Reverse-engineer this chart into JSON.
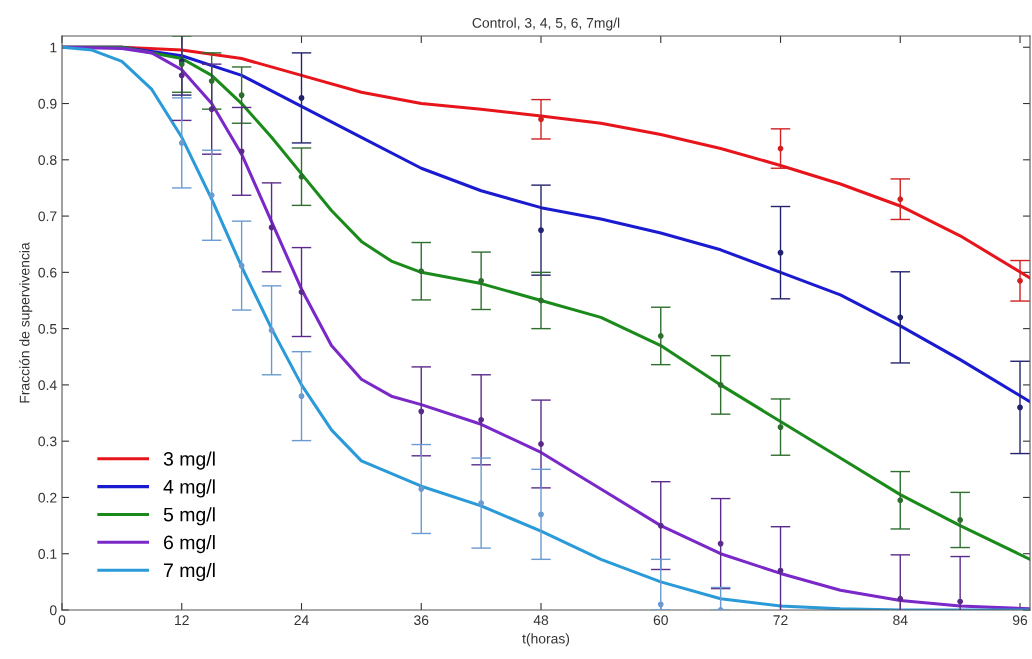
{
  "chart_data": {
    "type": "line",
    "title": "Control, 3, 4, 5, 6, 7mg/l",
    "xlabel": "t(horas)",
    "ylabel": "Fracción de supervivencia",
    "xlim": [
      0,
      97
    ],
    "ylim": [
      0,
      1.02
    ],
    "xticks": [
      0,
      12,
      24,
      36,
      48,
      60,
      72,
      84,
      96
    ],
    "yticks": [
      0,
      0.1,
      0.2,
      0.3,
      0.4,
      0.5,
      0.6,
      0.7,
      0.8,
      0.9,
      1
    ],
    "grid": false,
    "legend": "bottom left",
    "line_style": "solid",
    "series": [
      {
        "name": "3 mg/l",
        "color": "#e8141c",
        "x": [
          0,
          6,
          12,
          18,
          24,
          30,
          36,
          42,
          48,
          54,
          60,
          66,
          72,
          78,
          84,
          90,
          97
        ],
        "values": [
          1,
          1,
          0.995,
          0.98,
          0.95,
          0.92,
          0.9,
          0.89,
          0.878,
          0.865,
          0.845,
          0.82,
          0.79,
          0.757,
          0.718,
          0.665,
          0.59
        ]
      },
      {
        "name": "4 mg/l",
        "color": "#1a1ad0",
        "x": [
          0,
          6,
          12,
          18,
          24,
          30,
          36,
          42,
          48,
          54,
          60,
          66,
          72,
          78,
          84,
          90,
          97
        ],
        "values": [
          1,
          1,
          0.985,
          0.95,
          0.895,
          0.84,
          0.785,
          0.745,
          0.715,
          0.695,
          0.67,
          0.64,
          0.6,
          0.56,
          0.505,
          0.445,
          0.37
        ]
      },
      {
        "name": "5 mg/l",
        "color": "#1a8a1a",
        "x": [
          0,
          6,
          12,
          15,
          18,
          21,
          24,
          27,
          30,
          33,
          36,
          42,
          48,
          54,
          60,
          66,
          72,
          78,
          84,
          90,
          97
        ],
        "values": [
          1,
          1,
          0.98,
          0.95,
          0.9,
          0.84,
          0.775,
          0.71,
          0.655,
          0.62,
          0.6,
          0.58,
          0.55,
          0.52,
          0.47,
          0.4,
          0.335,
          0.27,
          0.205,
          0.15,
          0.09
        ]
      },
      {
        "name": "6 mg/l",
        "color": "#7a28c8",
        "x": [
          0,
          6,
          9,
          12,
          15,
          18,
          21,
          24,
          27,
          30,
          33,
          36,
          42,
          48,
          54,
          60,
          66,
          72,
          78,
          84,
          90,
          97
        ],
        "values": [
          1,
          0.998,
          0.99,
          0.96,
          0.9,
          0.81,
          0.69,
          0.57,
          0.47,
          0.41,
          0.38,
          0.365,
          0.33,
          0.28,
          0.215,
          0.15,
          0.1,
          0.065,
          0.035,
          0.017,
          0.007,
          0.002
        ]
      },
      {
        "name": "7 mg/l",
        "color": "#2a9ad8",
        "x": [
          0,
          3,
          6,
          9,
          12,
          15,
          18,
          21,
          24,
          27,
          30,
          36,
          42,
          48,
          54,
          60,
          66,
          72,
          78,
          84,
          97
        ],
        "values": [
          1,
          0.995,
          0.975,
          0.925,
          0.84,
          0.73,
          0.61,
          0.5,
          0.4,
          0.32,
          0.265,
          0.22,
          0.185,
          0.14,
          0.09,
          0.05,
          0.02,
          0.007,
          0.002,
          0,
          0
        ]
      },
      {
        "type": "scatter",
        "marker": "circle",
        "color": "#d02020",
        "x": [
          48,
          72,
          84,
          96
        ],
        "values": [
          0.872,
          0.82,
          0.73,
          0.585
        ],
        "errors": [
          0.035,
          0.035,
          0.036,
          0.036
        ]
      },
      {
        "type": "scatter",
        "marker": "circle",
        "color": "#22226e",
        "x": [
          12,
          24,
          48,
          72,
          84,
          96
        ],
        "values": [
          0.975,
          0.91,
          0.675,
          0.635,
          0.52,
          0.36
        ],
        "errors": [
          0.06,
          0.08,
          0.08,
          0.082,
          0.081,
          0.082
        ]
      },
      {
        "type": "scatter",
        "marker": "circle",
        "color": "#2e6e2e",
        "x": [
          12,
          15,
          18,
          24,
          36,
          42,
          48,
          60,
          66,
          72,
          84,
          90
        ],
        "values": [
          0.97,
          0.94,
          0.915,
          0.77,
          0.602,
          0.585,
          0.55,
          0.487,
          0.4,
          0.325,
          0.195,
          0.16
        ],
        "errors": [
          0.05,
          0.05,
          0.05,
          0.051,
          0.051,
          0.051,
          0.05,
          0.051,
          0.052,
          0.05,
          0.051,
          0.049
        ]
      },
      {
        "type": "scatter",
        "marker": "circle",
        "color": "#5a2a8a",
        "x": [
          12,
          15,
          18,
          21,
          24,
          36,
          42,
          48,
          60,
          66,
          72,
          84,
          90
        ],
        "values": [
          0.95,
          0.89,
          0.815,
          0.68,
          0.565,
          0.353,
          0.338,
          0.295,
          0.15,
          0.118,
          0.07,
          0.02,
          0.015
        ],
        "errors": [
          0.08,
          0.08,
          0.078,
          0.079,
          0.079,
          0.079,
          0.08,
          0.078,
          0.078,
          0.08,
          0.078,
          0.078,
          0.08
        ]
      },
      {
        "type": "scatter",
        "marker": "circle",
        "color": "#6a9ad0",
        "x": [
          12,
          15,
          18,
          21,
          24,
          36,
          42,
          48,
          60,
          66
        ],
        "values": [
          0.83,
          0.737,
          0.612,
          0.497,
          0.38,
          0.215,
          0.19,
          0.17,
          0.01,
          0.0
        ],
        "errors": [
          0.08,
          0.08,
          0.079,
          0.079,
          0.079,
          0.079,
          0.08,
          0.08,
          [
            0,
            0.09
          ],
          [
            0,
            0.04
          ]
        ]
      }
    ]
  }
}
